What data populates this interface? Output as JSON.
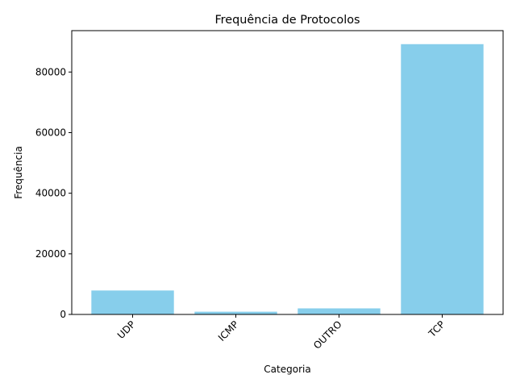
{
  "chart_data": {
    "type": "bar",
    "title": "Frequência de Protocolos",
    "xlabel": "Categoria",
    "ylabel": "Frequência",
    "categories": [
      "UDP",
      "ICMP",
      "OUTRO",
      "TCP"
    ],
    "values": [
      7900,
      900,
      2000,
      89200
    ],
    "ylim": [
      0,
      93660
    ],
    "yticks": [
      0,
      20000,
      40000,
      60000,
      80000
    ],
    "ytick_labels": [
      "0",
      "20000",
      "40000",
      "60000",
      "80000"
    ],
    "bar_color": "#87ceeb",
    "xtick_rotation": "45 degrees",
    "grid": false,
    "legend": "none"
  }
}
